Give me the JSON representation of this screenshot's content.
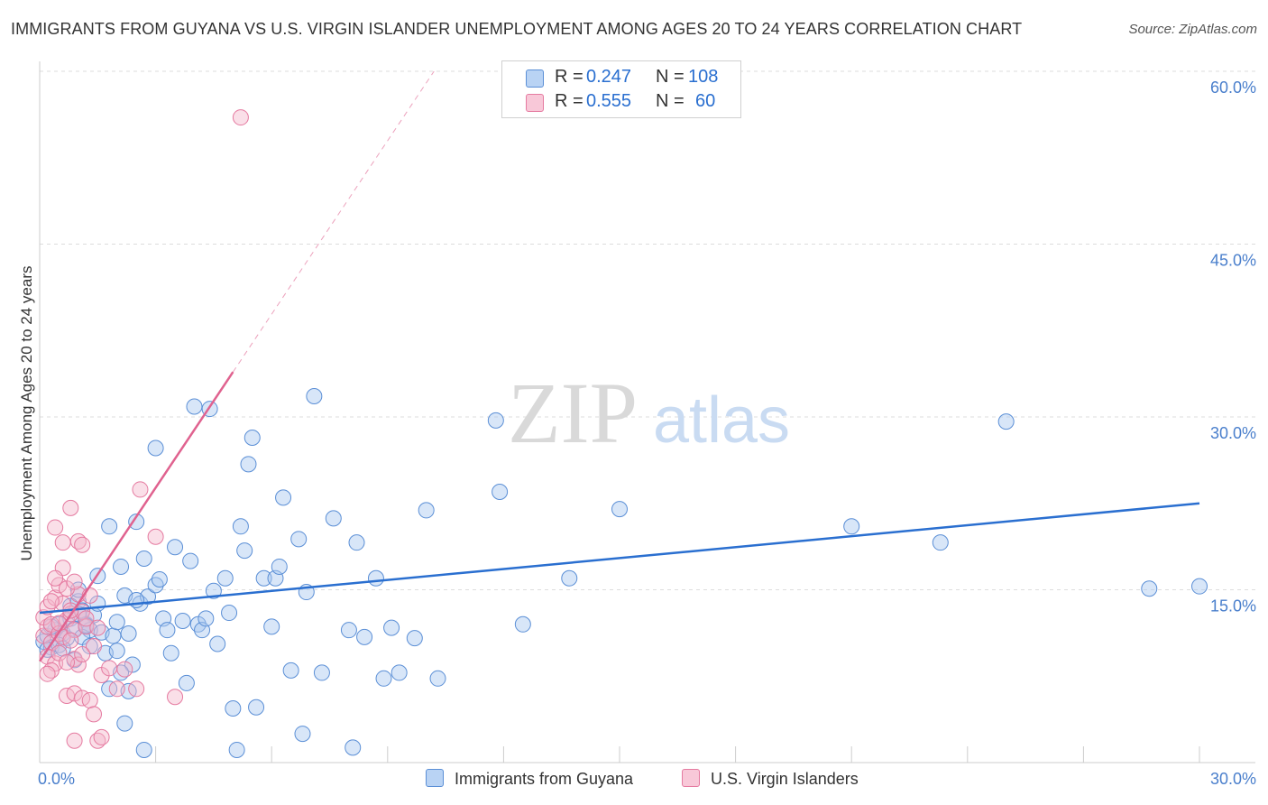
{
  "header": {
    "title": "IMMIGRANTS FROM GUYANA VS U.S. VIRGIN ISLANDER UNEMPLOYMENT AMONG AGES 20 TO 24 YEARS CORRELATION CHART",
    "source": "Source: ZipAtlas.com"
  },
  "watermark": {
    "zip": "ZIP",
    "atlas": "atlas"
  },
  "legend": {
    "blue": {
      "r_label": "R =",
      "r_value": "0.247",
      "n_label": "N =",
      "n_value": "108"
    },
    "pink": {
      "r_label": "R =",
      "r_value": "0.555",
      "n_label": "N =",
      "n_value": "60"
    }
  },
  "colors": {
    "blue_fill": "#a9c8f0",
    "blue_stroke": "#5b8fd6",
    "blue_line": "#2a6fd0",
    "pink_fill": "#f5b8cc",
    "pink_stroke": "#e57aa0",
    "pink_line": "#e0628f",
    "tick_label": "#4a7fcc",
    "grid": "#dddddd"
  },
  "chart_data": {
    "type": "scatter",
    "title": "IMMIGRANTS FROM GUYANA VS U.S. VIRGIN ISLANDER UNEMPLOYMENT AMONG AGES 20 TO 24 YEARS CORRELATION CHART",
    "xlabel": "",
    "ylabel": "Unemployment Among Ages 20 to 24 years",
    "xlim": [
      0,
      30
    ],
    "ylim": [
      0,
      60
    ],
    "x_tick_labels": [
      {
        "value": 0,
        "label": "0.0%"
      },
      {
        "value": 30,
        "label": "30.0%"
      }
    ],
    "y_tick_labels": [
      {
        "value": 15,
        "label": "15.0%"
      },
      {
        "value": 30,
        "label": "30.0%"
      },
      {
        "value": 45,
        "label": "45.0%"
      },
      {
        "value": 60,
        "label": "60.0%"
      }
    ],
    "x_minor_ticks": [
      3,
      6,
      9,
      12,
      15,
      18,
      21,
      24,
      27,
      30
    ],
    "series": [
      {
        "name": "Immigrants from Guyana",
        "color": "blue",
        "trend": {
          "x0": 0,
          "y0": 13.0,
          "x1": 30,
          "y1": 22.5,
          "dashed_from": null
        },
        "points": [
          [
            0.1,
            10.5
          ],
          [
            0.2,
            11.0
          ],
          [
            0.3,
            10.0
          ],
          [
            0.2,
            9.8
          ],
          [
            0.4,
            11.5
          ],
          [
            0.5,
            12.0
          ],
          [
            0.6,
            11.2
          ],
          [
            0.7,
            10.8
          ],
          [
            0.8,
            12.5
          ],
          [
            0.3,
            11.8
          ],
          [
            0.5,
            10.2
          ],
          [
            0.9,
            11.6
          ],
          [
            1.0,
            14.0
          ],
          [
            1.1,
            13.2
          ],
          [
            1.2,
            12.0
          ],
          [
            1.3,
            11.5
          ],
          [
            0.8,
            13.6
          ],
          [
            1.0,
            15.0
          ],
          [
            1.1,
            10.9
          ],
          [
            1.4,
            12.8
          ],
          [
            1.2,
            11.9
          ],
          [
            1.5,
            16.2
          ],
          [
            1.6,
            11.3
          ],
          [
            1.7,
            9.5
          ],
          [
            1.8,
            20.5
          ],
          [
            1.9,
            11.0
          ],
          [
            1.5,
            13.8
          ],
          [
            2.0,
            12.2
          ],
          [
            2.1,
            17.0
          ],
          [
            2.2,
            14.5
          ],
          [
            2.3,
            11.2
          ],
          [
            2.4,
            8.5
          ],
          [
            2.5,
            20.9
          ],
          [
            2.6,
            13.8
          ],
          [
            2.7,
            17.7
          ],
          [
            2.8,
            14.4
          ],
          [
            2.0,
            9.7
          ],
          [
            2.1,
            7.8
          ],
          [
            2.3,
            6.2
          ],
          [
            2.5,
            14.1
          ],
          [
            3.0,
            15.4
          ],
          [
            3.1,
            15.9
          ],
          [
            3.2,
            12.5
          ],
          [
            3.3,
            11.5
          ],
          [
            3.4,
            9.5
          ],
          [
            3.5,
            18.7
          ],
          [
            3.7,
            12.3
          ],
          [
            3.8,
            6.9
          ],
          [
            3.9,
            17.5
          ],
          [
            4.0,
            30.9
          ],
          [
            4.1,
            12.0
          ],
          [
            4.2,
            11.5
          ],
          [
            4.3,
            12.5
          ],
          [
            4.4,
            30.7
          ],
          [
            4.5,
            14.9
          ],
          [
            4.6,
            10.3
          ],
          [
            4.8,
            16.0
          ],
          [
            4.9,
            13.0
          ],
          [
            5.0,
            4.7
          ],
          [
            5.1,
            1.1
          ],
          [
            5.2,
            20.5
          ],
          [
            5.3,
            18.4
          ],
          [
            5.4,
            25.9
          ],
          [
            5.5,
            28.2
          ],
          [
            5.6,
            4.8
          ],
          [
            5.8,
            16.0
          ],
          [
            6.0,
            11.8
          ],
          [
            6.1,
            16.0
          ],
          [
            6.2,
            17.0
          ],
          [
            6.3,
            23.0
          ],
          [
            6.5,
            8.0
          ],
          [
            6.7,
            19.4
          ],
          [
            6.8,
            2.5
          ],
          [
            6.9,
            14.8
          ],
          [
            7.1,
            31.8
          ],
          [
            7.3,
            7.8
          ],
          [
            7.6,
            21.2
          ],
          [
            8.0,
            11.5
          ],
          [
            8.1,
            1.3
          ],
          [
            8.2,
            19.1
          ],
          [
            8.4,
            10.9
          ],
          [
            8.7,
            16.0
          ],
          [
            8.9,
            7.3
          ],
          [
            9.1,
            11.7
          ],
          [
            9.3,
            7.8
          ],
          [
            9.7,
            10.8
          ],
          [
            10.0,
            21.9
          ],
          [
            10.3,
            7.3
          ],
          [
            11.8,
            29.7
          ],
          [
            11.9,
            23.5
          ],
          [
            12.5,
            12.0
          ],
          [
            13.7,
            16.0
          ],
          [
            15.0,
            22.0
          ],
          [
            21.0,
            20.5
          ],
          [
            23.3,
            19.1
          ],
          [
            25.0,
            29.6
          ],
          [
            28.7,
            15.1
          ],
          [
            30.0,
            15.3
          ],
          [
            0.6,
            9.9
          ],
          [
            0.9,
            8.9
          ],
          [
            1.0,
            12.9
          ],
          [
            1.3,
            10.1
          ],
          [
            1.8,
            6.4
          ],
          [
            2.2,
            3.4
          ],
          [
            2.7,
            1.1
          ],
          [
            3.0,
            27.3
          ]
        ]
      },
      {
        "name": "U.S. Virgin Islanders",
        "color": "pink",
        "trend": {
          "x0": 0,
          "y0": 8.8,
          "x1": 10.2,
          "y1": 60,
          "dashed_from": 5.0
        },
        "points": [
          [
            0.1,
            11.0
          ],
          [
            0.2,
            11.8
          ],
          [
            0.1,
            12.6
          ],
          [
            0.3,
            12.0
          ],
          [
            0.2,
            13.5
          ],
          [
            0.4,
            14.3
          ],
          [
            0.3,
            10.4
          ],
          [
            0.5,
            11.2
          ],
          [
            0.6,
            10.9
          ],
          [
            0.7,
            12.4
          ],
          [
            0.2,
            9.2
          ],
          [
            0.4,
            8.6
          ],
          [
            0.5,
            15.4
          ],
          [
            0.6,
            13.8
          ],
          [
            0.8,
            12.9
          ],
          [
            0.9,
            11.5
          ],
          [
            1.0,
            14.6
          ],
          [
            1.1,
            13.1
          ],
          [
            0.3,
            8.0
          ],
          [
            0.5,
            9.5
          ],
          [
            0.6,
            16.9
          ],
          [
            0.7,
            15.1
          ],
          [
            0.8,
            10.6
          ],
          [
            0.9,
            9.0
          ],
          [
            1.0,
            8.5
          ],
          [
            1.2,
            11.8
          ],
          [
            1.3,
            14.5
          ],
          [
            0.4,
            20.4
          ],
          [
            0.6,
            19.1
          ],
          [
            0.8,
            22.1
          ],
          [
            1.0,
            19.2
          ],
          [
            1.1,
            18.9
          ],
          [
            1.4,
            10.1
          ],
          [
            1.6,
            7.6
          ],
          [
            1.8,
            8.2
          ],
          [
            0.7,
            5.8
          ],
          [
            0.9,
            6.0
          ],
          [
            1.1,
            5.6
          ],
          [
            1.3,
            5.4
          ],
          [
            1.4,
            4.2
          ],
          [
            1.5,
            1.9
          ],
          [
            1.6,
            2.2
          ],
          [
            0.9,
            1.9
          ],
          [
            2.0,
            6.4
          ],
          [
            2.2,
            8.1
          ],
          [
            2.5,
            6.4
          ],
          [
            2.6,
            23.7
          ],
          [
            3.0,
            19.6
          ],
          [
            3.5,
            5.7
          ],
          [
            0.2,
            7.7
          ],
          [
            0.3,
            14.0
          ],
          [
            0.5,
            12.1
          ],
          [
            0.7,
            8.7
          ],
          [
            0.9,
            15.7
          ],
          [
            1.2,
            12.5
          ],
          [
            1.5,
            11.7
          ],
          [
            1.1,
            9.4
          ],
          [
            0.8,
            13.2
          ],
          [
            0.4,
            16.0
          ],
          [
            5.2,
            56.0
          ]
        ]
      }
    ]
  },
  "bottom_legend": {
    "blue_label": "Immigrants from Guyana",
    "pink_label": "U.S. Virgin Islanders"
  }
}
